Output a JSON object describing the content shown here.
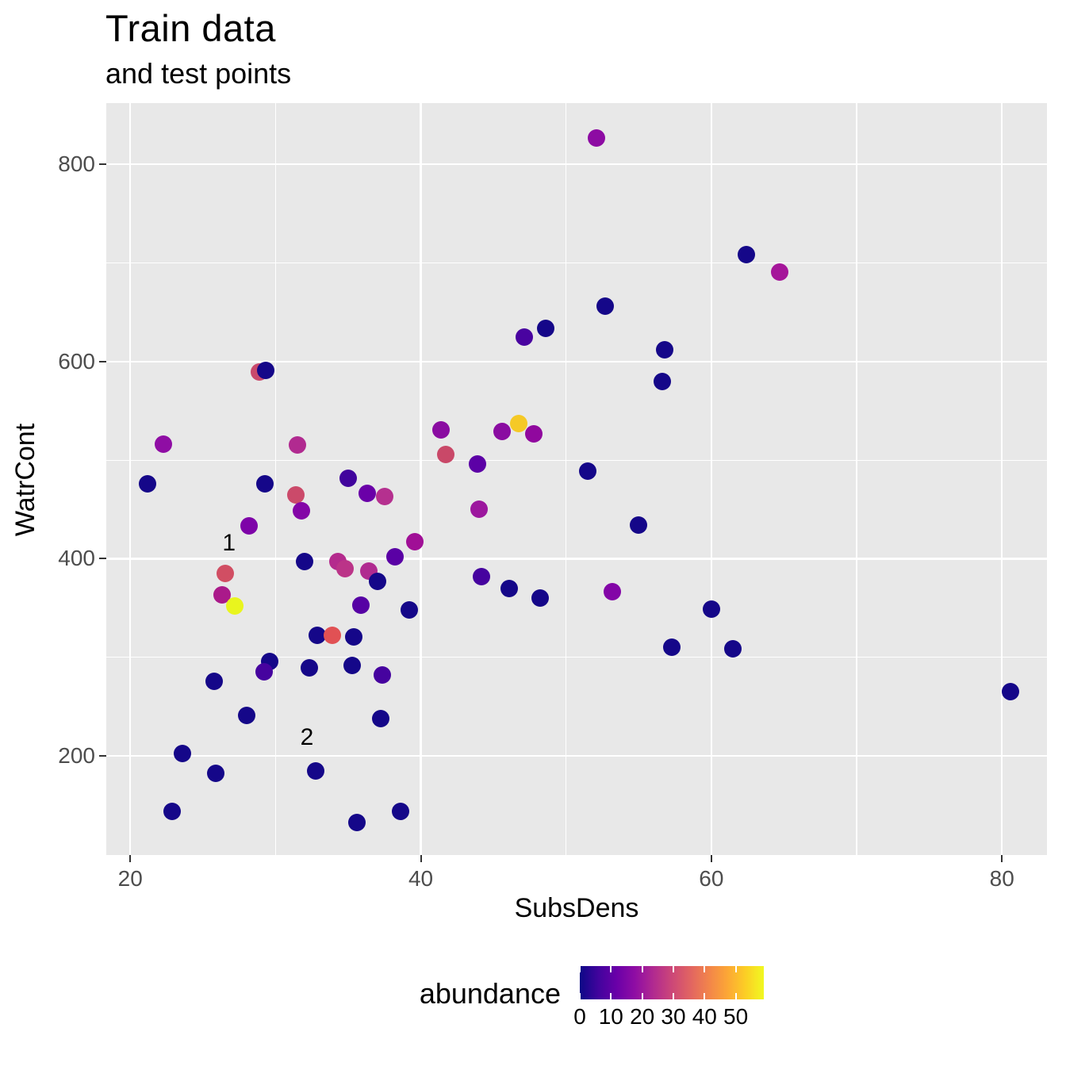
{
  "title": "Train data",
  "subtitle": "and test points",
  "chart_data": {
    "type": "scatter",
    "title": "Train data",
    "subtitle": "and test points",
    "xlabel": "SubsDens",
    "ylabel": "WatrCont",
    "color_label": "abundance",
    "xlim": [
      18.35,
      83.1
    ],
    "ylim": [
      99.6,
      862
    ],
    "x_major_ticks": [
      20,
      40,
      60,
      80
    ],
    "x_minor_ticks": [
      30,
      50,
      70
    ],
    "y_major_ticks": [
      200,
      400,
      600,
      800
    ],
    "y_minor_ticks": [
      300,
      500,
      700
    ],
    "grid": true,
    "panel_bg": "#e8e8e8",
    "grid_color": "#ffffff",
    "tick_label_color": "#4d4d4d",
    "point_diameter": 22,
    "points": [
      {
        "x": 21.2,
        "y": 476,
        "color": "#150789"
      },
      {
        "x": 22.3,
        "y": 516,
        "color": "#8f0da4"
      },
      {
        "x": 28.9,
        "y": 589,
        "color": "#c9496c"
      },
      {
        "x": 29.3,
        "y": 591,
        "color": "#150789"
      },
      {
        "x": 31.5,
        "y": 515,
        "color": "#b12a90"
      },
      {
        "x": 29.25,
        "y": 476,
        "color": "#150789"
      },
      {
        "x": 35.0,
        "y": 482,
        "color": "#41049d"
      },
      {
        "x": 36.3,
        "y": 466,
        "color": "#6a00a8"
      },
      {
        "x": 37.5,
        "y": 463.5,
        "color": "#b5308f"
      },
      {
        "x": 31.4,
        "y": 464.5,
        "color": "#cb4a6a"
      },
      {
        "x": 31.8,
        "y": 449,
        "color": "#8405a7"
      },
      {
        "x": 28.2,
        "y": 433.5,
        "color": "#7e03a8"
      },
      {
        "x": 26.55,
        "y": 385,
        "color": "#d14e63"
      },
      {
        "x": 26.3,
        "y": 363.5,
        "color": "#aa1a8a"
      },
      {
        "x": 27.2,
        "y": 352.5,
        "color": "#e9f51e"
      },
      {
        "x": 32.0,
        "y": 397,
        "color": "#150789"
      },
      {
        "x": 34.3,
        "y": 397,
        "color": "#b42a8d"
      },
      {
        "x": 34.8,
        "y": 390,
        "color": "#bb3488"
      },
      {
        "x": 36.4,
        "y": 387.5,
        "color": "#b02a90"
      },
      {
        "x": 37.0,
        "y": 377,
        "color": "#150789"
      },
      {
        "x": 39.6,
        "y": 417,
        "color": "#a00f96"
      },
      {
        "x": 38.2,
        "y": 402,
        "color": "#5a01a5"
      },
      {
        "x": 39.2,
        "y": 348,
        "color": "#150789"
      },
      {
        "x": 35.85,
        "y": 353,
        "color": "#5601a4"
      },
      {
        "x": 32.85,
        "y": 322.5,
        "color": "#150789"
      },
      {
        "x": 33.9,
        "y": 322.5,
        "color": "#e15154"
      },
      {
        "x": 35.4,
        "y": 321,
        "color": "#150789"
      },
      {
        "x": 29.6,
        "y": 296,
        "color": "#150789"
      },
      {
        "x": 29.2,
        "y": 285.5,
        "color": "#46039f"
      },
      {
        "x": 32.3,
        "y": 289.5,
        "color": "#150789"
      },
      {
        "x": 35.3,
        "y": 292,
        "color": "#150789"
      },
      {
        "x": 37.35,
        "y": 282,
        "color": "#46039f"
      },
      {
        "x": 25.8,
        "y": 276,
        "color": "#150789"
      },
      {
        "x": 28.0,
        "y": 241,
        "color": "#150789"
      },
      {
        "x": 37.25,
        "y": 238,
        "color": "#150789"
      },
      {
        "x": 23.6,
        "y": 202.5,
        "color": "#150789"
      },
      {
        "x": 25.9,
        "y": 182.5,
        "color": "#150789"
      },
      {
        "x": 32.75,
        "y": 185,
        "color": "#150789"
      },
      {
        "x": 22.9,
        "y": 144,
        "color": "#150789"
      },
      {
        "x": 35.6,
        "y": 132.5,
        "color": "#150789"
      },
      {
        "x": 38.6,
        "y": 144,
        "color": "#150789"
      },
      {
        "x": 52.1,
        "y": 827,
        "color": "#8d0ba3"
      },
      {
        "x": 52.7,
        "y": 656,
        "color": "#150789"
      },
      {
        "x": 48.6,
        "y": 634,
        "color": "#150789"
      },
      {
        "x": 47.1,
        "y": 625,
        "color": "#4903a0"
      },
      {
        "x": 56.8,
        "y": 612,
        "color": "#150789"
      },
      {
        "x": 56.6,
        "y": 580,
        "color": "#150789"
      },
      {
        "x": 41.4,
        "y": 531,
        "color": "#8a0ca1"
      },
      {
        "x": 45.6,
        "y": 529,
        "color": "#8a0ca1"
      },
      {
        "x": 47.75,
        "y": 526.5,
        "color": "#90089e"
      },
      {
        "x": 46.75,
        "y": 537,
        "color": "#f5c926"
      },
      {
        "x": 41.7,
        "y": 505.5,
        "color": "#c94868"
      },
      {
        "x": 43.9,
        "y": 496,
        "color": "#5c01a6"
      },
      {
        "x": 51.5,
        "y": 489,
        "color": "#150789"
      },
      {
        "x": 44.0,
        "y": 450,
        "color": "#9c179e"
      },
      {
        "x": 55.0,
        "y": 434,
        "color": "#150789"
      },
      {
        "x": 44.2,
        "y": 382,
        "color": "#46039f"
      },
      {
        "x": 46.1,
        "y": 370,
        "color": "#150789"
      },
      {
        "x": 48.2,
        "y": 360,
        "color": "#150789"
      },
      {
        "x": 53.2,
        "y": 366.5,
        "color": "#8305a7"
      },
      {
        "x": 60.0,
        "y": 349,
        "color": "#150789"
      },
      {
        "x": 57.3,
        "y": 310,
        "color": "#150789"
      },
      {
        "x": 61.5,
        "y": 309,
        "color": "#150789"
      },
      {
        "x": 62.4,
        "y": 708,
        "color": "#150789"
      },
      {
        "x": 64.7,
        "y": 691,
        "color": "#a5169a"
      },
      {
        "x": 80.6,
        "y": 265.5,
        "color": "#150789"
      }
    ],
    "annotations": [
      {
        "x": 26.8,
        "y": 415.5,
        "text": "1"
      },
      {
        "x": 32.16,
        "y": 218.5,
        "text": "2"
      }
    ],
    "legend": {
      "title": "abundance",
      "position": "bottom",
      "ticks": [
        0,
        10,
        20,
        30,
        40,
        50
      ],
      "bar_range": [
        0,
        59
      ],
      "gradient_stops": [
        "#0d0887",
        "#41049d",
        "#6a00a8",
        "#8f0da4",
        "#b12a90",
        "#cc4778",
        "#e16462",
        "#f2844b",
        "#fca636",
        "#fcce25",
        "#f0f921"
      ]
    }
  }
}
